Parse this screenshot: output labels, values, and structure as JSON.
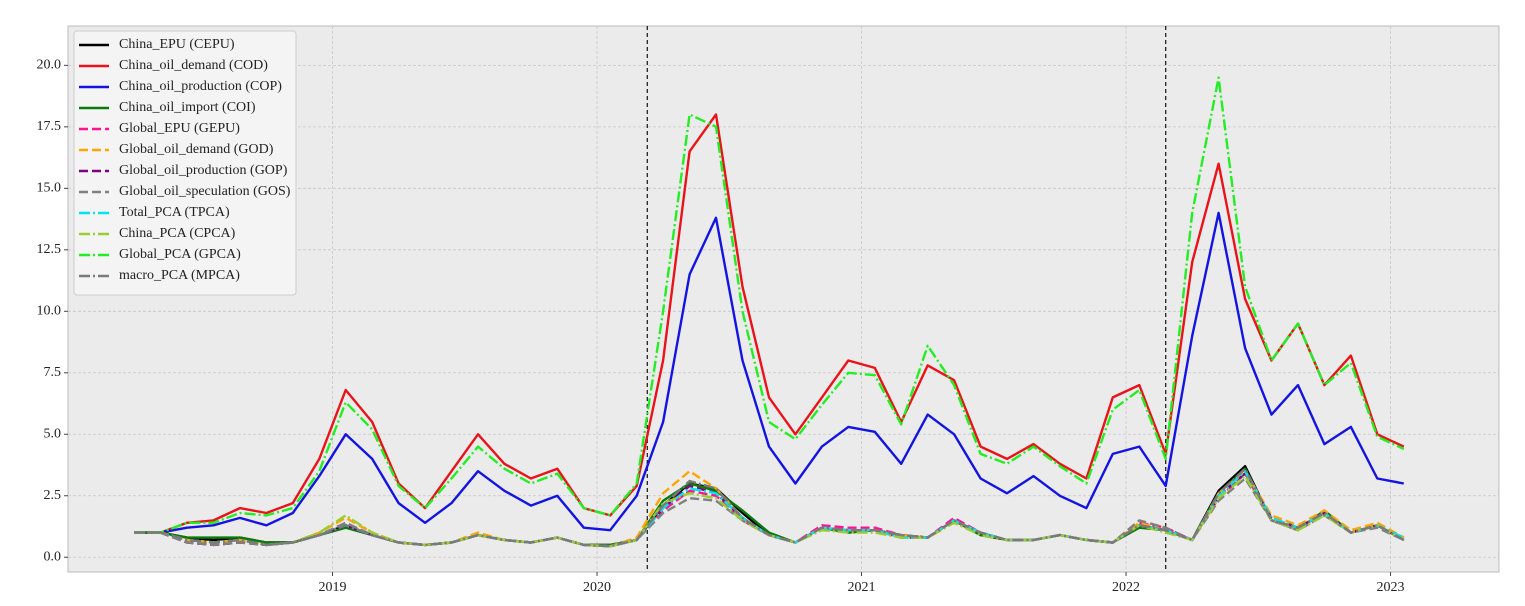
{
  "chart_data": {
    "type": "line",
    "x": [
      2018.25,
      2018.35,
      2018.45,
      2018.55,
      2018.65,
      2018.75,
      2018.85,
      2018.95,
      2019.05,
      2019.15,
      2019.25,
      2019.35,
      2019.45,
      2019.55,
      2019.65,
      2019.75,
      2019.85,
      2019.95,
      2020.05,
      2020.15,
      2020.25,
      2020.35,
      2020.45,
      2020.55,
      2020.65,
      2020.75,
      2020.85,
      2020.95,
      2021.05,
      2021.15,
      2021.25,
      2021.35,
      2021.45,
      2021.55,
      2021.65,
      2021.75,
      2021.85,
      2021.95,
      2022.05,
      2022.15,
      2022.25,
      2022.35,
      2022.45,
      2022.55,
      2022.65,
      2022.75,
      2022.85,
      2022.95,
      2023.05
    ],
    "xlim": [
      2018.0,
      2023.41
    ],
    "xticks": [
      2019,
      2020,
      2021,
      2022,
      2023
    ],
    "ylim": [
      -0.6,
      21.6
    ],
    "yticks": [
      {
        "value": 0,
        "label": "0.0"
      },
      2.5,
      {
        "value": 5,
        "label": "5.0"
      },
      7.5,
      {
        "value": 10,
        "label": "10.0"
      },
      12.5,
      {
        "value": 15,
        "label": "15.0"
      },
      17.5,
      {
        "value": 20,
        "label": "20.0"
      }
    ],
    "grid": true,
    "legend": "upper left",
    "vlines": [
      2020.19,
      2022.15
    ],
    "series": [
      {
        "name": "China_EPU (CEPU)",
        "color": "#000000",
        "dash": "solid",
        "values": [
          1.0,
          1.0,
          0.8,
          0.7,
          0.8,
          0.6,
          0.6,
          0.9,
          1.3,
          0.9,
          0.6,
          0.5,
          0.6,
          0.9,
          0.7,
          0.6,
          0.8,
          0.5,
          0.5,
          0.7,
          2.1,
          3.0,
          2.8,
          1.8,
          0.9,
          0.6,
          1.2,
          1.0,
          1.1,
          0.9,
          0.8,
          1.5,
          0.9,
          0.7,
          0.7,
          0.9,
          0.7,
          0.6,
          1.3,
          1.1,
          0.7,
          2.7,
          3.7,
          1.5,
          1.2,
          1.8,
          1.0,
          1.3,
          0.7
        ]
      },
      {
        "name": "China_oil_demand (COD)",
        "color": "#e8141a",
        "dash": "solid",
        "values": [
          1.0,
          1.0,
          1.4,
          1.5,
          2.0,
          1.8,
          2.2,
          4.0,
          6.8,
          5.5,
          3.0,
          2.0,
          3.5,
          5.0,
          3.8,
          3.2,
          3.6,
          2.0,
          1.7,
          2.9,
          8.0,
          16.5,
          18.0,
          11.0,
          6.5,
          5.0,
          6.5,
          8.0,
          7.7,
          5.5,
          7.8,
          7.2,
          4.5,
          4.0,
          4.6,
          3.8,
          3.2,
          6.5,
          7.0,
          4.2,
          12.0,
          16.0,
          10.5,
          8.0,
          9.5,
          7.0,
          8.2,
          5.0,
          4.5
        ]
      },
      {
        "name": "China_oil_production (COP)",
        "color": "#1414e0",
        "dash": "solid",
        "values": [
          1.0,
          1.0,
          1.2,
          1.3,
          1.6,
          1.3,
          1.8,
          3.3,
          5.0,
          4.0,
          2.2,
          1.4,
          2.2,
          3.5,
          2.7,
          2.1,
          2.5,
          1.2,
          1.1,
          2.5,
          5.5,
          11.5,
          13.8,
          8.0,
          4.5,
          3.0,
          4.5,
          5.3,
          5.1,
          3.8,
          5.8,
          5.0,
          3.2,
          2.6,
          3.3,
          2.5,
          2.0,
          4.2,
          4.5,
          2.9,
          9.0,
          14.0,
          8.5,
          5.8,
          7.0,
          4.6,
          5.3,
          3.2,
          3.0
        ]
      },
      {
        "name": "China_oil_import (COI)",
        "color": "#0a7a0a",
        "dash": "solid",
        "values": [
          1.0,
          1.0,
          0.8,
          0.8,
          0.8,
          0.6,
          0.6,
          0.9,
          1.2,
          0.9,
          0.6,
          0.5,
          0.6,
          0.9,
          0.7,
          0.6,
          0.8,
          0.5,
          0.5,
          0.7,
          2.3,
          3.0,
          2.7,
          1.9,
          1.0,
          0.6,
          1.2,
          1.0,
          1.1,
          0.9,
          0.8,
          1.5,
          0.9,
          0.7,
          0.7,
          0.9,
          0.7,
          0.6,
          1.2,
          1.1,
          0.7,
          2.6,
          3.6,
          1.5,
          1.1,
          1.9,
          1.0,
          1.3,
          0.7
        ]
      },
      {
        "name": "Global_EPU (GEPU)",
        "color": "#ff1493",
        "dash": "dashed",
        "values": [
          1.0,
          1.0,
          0.6,
          0.5,
          0.6,
          0.5,
          0.6,
          0.9,
          1.4,
          0.9,
          0.6,
          0.5,
          0.6,
          0.9,
          0.7,
          0.6,
          0.8,
          0.5,
          0.45,
          0.7,
          1.9,
          2.7,
          2.5,
          1.5,
          0.9,
          0.6,
          1.3,
          1.2,
          1.2,
          0.9,
          0.8,
          1.6,
          1.0,
          0.7,
          0.7,
          0.9,
          0.7,
          0.6,
          1.4,
          1.2,
          0.7,
          2.4,
          3.4,
          1.5,
          1.2,
          1.8,
          1.0,
          1.3,
          0.8
        ]
      },
      {
        "name": "Global_oil_demand (GOD)",
        "color": "#ffa500",
        "dash": "dashed",
        "values": [
          1.0,
          1.0,
          0.7,
          0.6,
          0.7,
          0.5,
          0.6,
          1.0,
          1.6,
          1.0,
          0.6,
          0.5,
          0.6,
          1.0,
          0.7,
          0.6,
          0.8,
          0.5,
          0.45,
          0.8,
          2.6,
          3.5,
          2.8,
          1.6,
          0.9,
          0.6,
          1.2,
          1.1,
          1.1,
          0.9,
          0.8,
          1.5,
          1.0,
          0.7,
          0.7,
          0.9,
          0.7,
          0.6,
          1.4,
          1.1,
          0.7,
          2.6,
          3.5,
          1.7,
          1.3,
          1.9,
          1.1,
          1.4,
          0.8
        ]
      },
      {
        "name": "Global_oil_production (GOP)",
        "color": "#800080",
        "dash": "dashed",
        "values": [
          1.0,
          1.0,
          0.6,
          0.5,
          0.6,
          0.5,
          0.6,
          0.9,
          1.3,
          0.9,
          0.6,
          0.5,
          0.6,
          0.9,
          0.7,
          0.6,
          0.8,
          0.5,
          0.45,
          0.7,
          2.0,
          2.9,
          2.6,
          1.6,
          0.9,
          0.6,
          1.2,
          1.1,
          1.1,
          0.8,
          0.8,
          1.5,
          1.0,
          0.7,
          0.7,
          0.9,
          0.7,
          0.6,
          1.3,
          1.1,
          0.7,
          2.5,
          3.4,
          1.6,
          1.2,
          1.8,
          1.0,
          1.3,
          0.7
        ]
      },
      {
        "name": "Global_oil_speculation (GOS)",
        "color": "#808080",
        "dash": "dashed",
        "values": [
          1.0,
          1.0,
          0.6,
          0.5,
          0.6,
          0.5,
          0.6,
          0.9,
          1.4,
          0.9,
          0.6,
          0.5,
          0.6,
          0.9,
          0.7,
          0.6,
          0.8,
          0.5,
          0.45,
          0.7,
          1.8,
          2.4,
          2.3,
          1.5,
          0.9,
          0.6,
          1.2,
          1.1,
          1.1,
          0.9,
          0.8,
          1.5,
          1.0,
          0.7,
          0.7,
          0.9,
          0.7,
          0.6,
          1.5,
          1.2,
          0.7,
          2.3,
          3.2,
          1.5,
          1.1,
          1.7,
          1.0,
          1.2,
          0.7
        ]
      },
      {
        "name": "Total_PCA (TPCA)",
        "color": "#00e5ee",
        "dash": "dashdot",
        "values": [
          1.0,
          1.0,
          0.7,
          0.6,
          0.7,
          0.5,
          0.6,
          0.9,
          1.3,
          0.9,
          0.6,
          0.5,
          0.6,
          0.9,
          0.7,
          0.6,
          0.8,
          0.5,
          0.45,
          0.7,
          2.0,
          2.8,
          2.6,
          1.6,
          0.9,
          0.6,
          1.2,
          1.1,
          1.1,
          0.8,
          0.8,
          1.5,
          1.0,
          0.7,
          0.7,
          0.9,
          0.7,
          0.6,
          1.3,
          1.1,
          0.7,
          2.5,
          3.5,
          1.6,
          1.2,
          1.8,
          1.0,
          1.3,
          0.8
        ]
      },
      {
        "name": "China_PCA (CPCA)",
        "color": "#9acd32",
        "dash": "dashdot",
        "values": [
          1.0,
          1.0,
          0.7,
          0.6,
          0.7,
          0.5,
          0.6,
          1.0,
          1.7,
          1.0,
          0.6,
          0.5,
          0.6,
          0.9,
          0.7,
          0.6,
          0.8,
          0.5,
          0.45,
          0.7,
          2.2,
          2.6,
          2.4,
          1.5,
          0.9,
          0.6,
          1.1,
          1.0,
          1.0,
          0.8,
          0.8,
          1.4,
          0.9,
          0.7,
          0.7,
          0.9,
          0.7,
          0.6,
          1.3,
          1.0,
          0.7,
          2.4,
          3.3,
          1.5,
          1.1,
          1.7,
          1.0,
          1.3,
          0.7
        ]
      },
      {
        "name": "Global_PCA (GPCA)",
        "color": "#22ee22",
        "dash": "dashdot",
        "values": [
          1.0,
          1.0,
          1.4,
          1.4,
          1.8,
          1.7,
          2.0,
          3.5,
          6.3,
          5.2,
          2.9,
          2.0,
          3.2,
          4.5,
          3.6,
          3.0,
          3.4,
          2.0,
          1.7,
          3.0,
          10.0,
          18.0,
          17.5,
          10.0,
          5.5,
          4.8,
          6.2,
          7.5,
          7.4,
          5.4,
          8.6,
          7.0,
          4.2,
          3.8,
          4.5,
          3.7,
          3.0,
          6.0,
          6.8,
          4.0,
          14.0,
          19.5,
          11.0,
          8.0,
          9.5,
          7.0,
          7.9,
          4.9,
          4.4
        ]
      },
      {
        "name": "macro_PCA (MPCA)",
        "color": "#7a7a7a",
        "dash": "dashdot",
        "values": [
          1.0,
          1.0,
          0.7,
          0.6,
          0.7,
          0.5,
          0.6,
          0.9,
          1.3,
          0.9,
          0.6,
          0.5,
          0.6,
          0.9,
          0.7,
          0.6,
          0.8,
          0.5,
          0.45,
          0.7,
          2.1,
          3.1,
          2.8,
          1.6,
          0.9,
          0.6,
          1.2,
          1.1,
          1.1,
          0.9,
          0.8,
          1.5,
          1.0,
          0.7,
          0.7,
          0.9,
          0.7,
          0.6,
          1.3,
          1.1,
          0.7,
          2.6,
          3.6,
          1.5,
          1.2,
          1.8,
          1.0,
          1.3,
          0.7
        ]
      }
    ]
  }
}
